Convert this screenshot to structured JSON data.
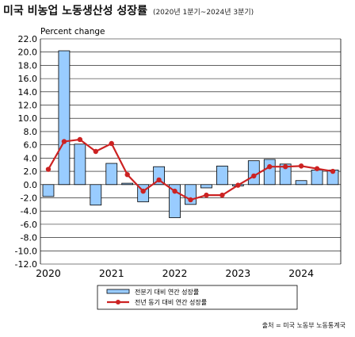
{
  "title": "미국 비농업 노동생산성 성장률",
  "period": "(2020년 1분기~2024년 3분기)",
  "source": "출처 = 미국 노동부 노동통계국",
  "chart_data": {
    "type": "bar+line",
    "ylabel": "Percent change",
    "ylim": [
      -12,
      22
    ],
    "yticks": [
      "22.0",
      "20.0",
      "18.0",
      "16.0",
      "14.0",
      "12.0",
      "10.0",
      "8.0",
      "6.0",
      "4.0",
      "2.0",
      "0.0",
      "-2.0",
      "-4.0",
      "-6.0",
      "-8.0",
      "-10.0",
      "-12.0"
    ],
    "x_years": [
      "2020",
      "2021",
      "2022",
      "2023",
      "2024"
    ],
    "quarters": [
      "2020Q1",
      "2020Q2",
      "2020Q3",
      "2020Q4",
      "2021Q1",
      "2021Q2",
      "2021Q3",
      "2021Q4",
      "2022Q1",
      "2022Q2",
      "2022Q3",
      "2022Q4",
      "2023Q1",
      "2023Q2",
      "2023Q3",
      "2023Q4",
      "2024Q1",
      "2024Q2",
      "2024Q3"
    ],
    "grid": true,
    "legend_position": "bottom",
    "series": [
      {
        "name": "전분기 대비 연간 성장률",
        "type": "bar",
        "color": "#99ccff",
        "values": [
          -1.8,
          20.2,
          6.1,
          -3.1,
          3.2,
          0.2,
          -2.6,
          2.7,
          -5.0,
          -3.0,
          -0.5,
          2.8,
          -0.2,
          3.6,
          3.8,
          3.1,
          0.6,
          2.2,
          2.2
        ]
      },
      {
        "name": "전년 동기 대비 연간 성장률",
        "type": "line",
        "color": "#cc2222",
        "values": [
          2.3,
          6.5,
          6.8,
          5.0,
          6.2,
          1.5,
          -1.0,
          0.7,
          -1.0,
          -2.3,
          -1.6,
          -1.6,
          -0.1,
          1.3,
          2.7,
          2.7,
          2.8,
          2.4,
          2.0
        ]
      }
    ]
  }
}
